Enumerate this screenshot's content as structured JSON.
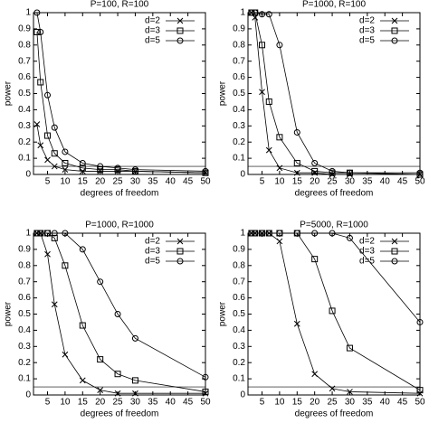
{
  "chart_data": [
    {
      "type": "line",
      "title": "P=100, R=100",
      "xlabel": "degrees of freedom",
      "ylabel": "power",
      "x": [
        2,
        3,
        5,
        7,
        10,
        15,
        20,
        25,
        30,
        50
      ],
      "xlim": [
        1,
        50
      ],
      "ylim": [
        0,
        1
      ],
      "xticks": [
        5,
        10,
        15,
        20,
        25,
        30,
        35,
        40,
        45,
        50
      ],
      "yticks": [
        0,
        0.1,
        0.2,
        0.3,
        0.4,
        0.5,
        0.6,
        0.7,
        0.8,
        0.9,
        1
      ],
      "legend": "upper-right",
      "reference_line": 0.05,
      "series": [
        {
          "name": "d=2",
          "color": "#000000",
          "marker": "x",
          "values": [
            0.31,
            0.18,
            0.09,
            0.05,
            0.03,
            0.02,
            0.02,
            0.02,
            0.02,
            0.01
          ]
        },
        {
          "name": "d=3",
          "color": "#000000",
          "marker": "square",
          "values": [
            0.88,
            0.57,
            0.24,
            0.13,
            0.07,
            0.04,
            0.03,
            0.03,
            0.02,
            0.01
          ]
        },
        {
          "name": "d=5",
          "color": "#000000",
          "marker": "circle",
          "values": [
            1,
            0.88,
            0.49,
            0.29,
            0.14,
            0.07,
            0.05,
            0.04,
            0.03,
            0.02
          ]
        }
      ]
    },
    {
      "type": "line",
      "title": "P=1000, R=100",
      "xlabel": "degrees of freedom",
      "ylabel": "power",
      "x": [
        2,
        3,
        5,
        7,
        10,
        15,
        20,
        25,
        30,
        50
      ],
      "xlim": [
        1,
        50
      ],
      "ylim": [
        0,
        1
      ],
      "xticks": [
        5,
        10,
        15,
        20,
        25,
        30,
        35,
        40,
        45,
        50
      ],
      "yticks": [
        0,
        0.1,
        0.2,
        0.3,
        0.4,
        0.5,
        0.6,
        0.7,
        0.8,
        0.9,
        1
      ],
      "legend": "upper-right",
      "reference_line": 0.05,
      "series": [
        {
          "name": "d=2",
          "color": "#000000",
          "marker": "x",
          "values": [
            1,
            0.97,
            0.51,
            0.15,
            0.04,
            0.01,
            0.01,
            0,
            0,
            0
          ]
        },
        {
          "name": "d=3",
          "color": "#000000",
          "marker": "square",
          "values": [
            1,
            1,
            0.8,
            0.45,
            0.23,
            0.07,
            0.02,
            0.01,
            0.01,
            0
          ]
        },
        {
          "name": "d=5",
          "color": "#000000",
          "marker": "circle",
          "values": [
            1,
            1,
            0.99,
            0.99,
            0.8,
            0.26,
            0.07,
            0.02,
            0.01,
            0.01
          ]
        }
      ]
    },
    {
      "type": "line",
      "title": "P=1000, R=1000",
      "xlabel": "degrees of freedom",
      "ylabel": "power",
      "x": [
        2,
        3,
        5,
        7,
        10,
        15,
        20,
        25,
        30,
        50
      ],
      "xlim": [
        1,
        50
      ],
      "ylim": [
        0,
        1
      ],
      "xticks": [
        5,
        10,
        15,
        20,
        25,
        30,
        35,
        40,
        45,
        50
      ],
      "yticks": [
        0,
        0.1,
        0.2,
        0.3,
        0.4,
        0.5,
        0.6,
        0.7,
        0.8,
        0.9,
        1
      ],
      "legend": "upper-right",
      "reference_line": 0.05,
      "series": [
        {
          "name": "d=2",
          "color": "#000000",
          "marker": "x",
          "values": [
            1,
            1,
            0.87,
            0.56,
            0.25,
            0.09,
            0.03,
            0.01,
            0.01,
            0.01
          ]
        },
        {
          "name": "d=3",
          "color": "#000000",
          "marker": "square",
          "values": [
            1,
            1,
            1,
            0.97,
            0.8,
            0.43,
            0.22,
            0.13,
            0.09,
            0.02
          ]
        },
        {
          "name": "d=5",
          "color": "#000000",
          "marker": "circle",
          "values": [
            1,
            1,
            1,
            1,
            1,
            0.9,
            0.7,
            0.5,
            0.35,
            0.11
          ]
        }
      ]
    },
    {
      "type": "line",
      "title": "P=5000, R=1000",
      "xlabel": "degrees of freedom",
      "ylabel": "power",
      "x": [
        2,
        3,
        5,
        7,
        10,
        15,
        20,
        25,
        30,
        50
      ],
      "xlim": [
        1,
        50
      ],
      "ylim": [
        0,
        1
      ],
      "xticks": [
        5,
        10,
        15,
        20,
        25,
        30,
        35,
        40,
        45,
        50
      ],
      "yticks": [
        0,
        0.1,
        0.2,
        0.3,
        0.4,
        0.5,
        0.6,
        0.7,
        0.8,
        0.9,
        1
      ],
      "legend": "upper-right",
      "reference_line": 0.05,
      "series": [
        {
          "name": "d=2",
          "color": "#000000",
          "marker": "x",
          "values": [
            1,
            1,
            1,
            1,
            0.95,
            0.44,
            0.13,
            0.04,
            0.02,
            0.01
          ]
        },
        {
          "name": "d=3",
          "color": "#000000",
          "marker": "square",
          "values": [
            1,
            1,
            1,
            1,
            1,
            1,
            0.84,
            0.52,
            0.29,
            0.03
          ]
        },
        {
          "name": "d=5",
          "color": "#000000",
          "marker": "circle",
          "values": [
            1,
            1,
            1,
            1,
            1,
            1,
            1,
            1,
            0.97,
            0.45
          ]
        }
      ]
    }
  ]
}
